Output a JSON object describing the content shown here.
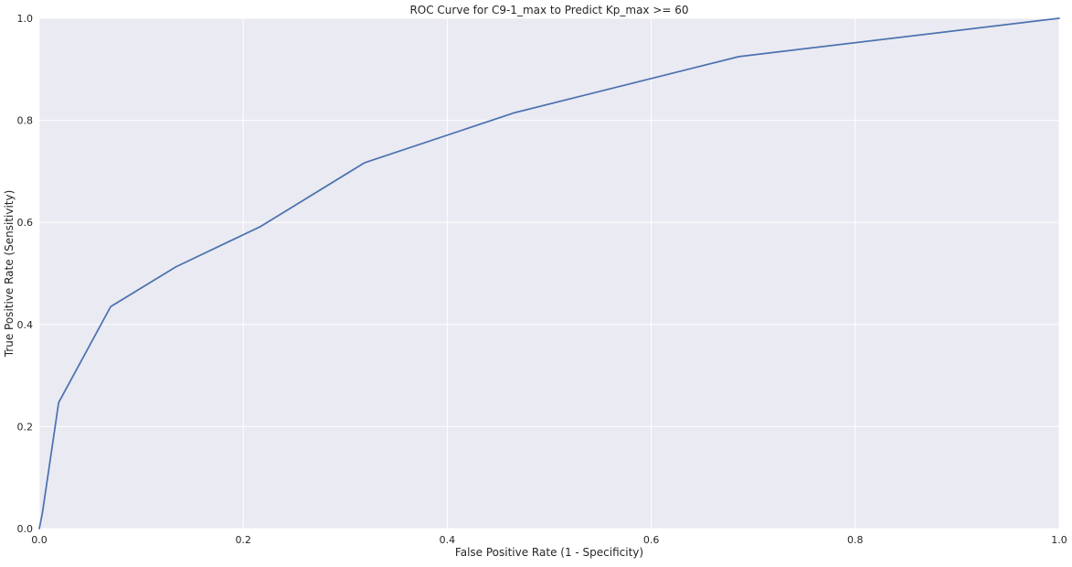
{
  "colors": {
    "plot_background": "#EAEAF2",
    "grid": "#FFFFFF",
    "line": "#4C72B0",
    "text": "#262626",
    "page_background": "#FFFFFF"
  },
  "chart_data": {
    "type": "line",
    "title": "ROC Curve for C9-1_max to Predict Kp_max >= 60",
    "xlabel": "False Positive Rate (1 - Specificity)",
    "ylabel": "True Positive Rate (Sensitivity)",
    "xlim": [
      0.0,
      1.0
    ],
    "ylim": [
      0.0,
      1.0
    ],
    "grid": true,
    "legend": "none",
    "x_ticks": [
      0.0,
      0.2,
      0.4,
      0.6,
      0.8,
      1.0
    ],
    "y_ticks": [
      0.0,
      0.2,
      0.4,
      0.6,
      0.8,
      1.0
    ],
    "x_tick_labels": [
      "0.0",
      "0.2",
      "0.4",
      "0.6",
      "0.8",
      "1.0"
    ],
    "y_tick_labels": [
      "0.0",
      "0.2",
      "0.4",
      "0.6",
      "0.8",
      "1.0"
    ],
    "series": [
      {
        "name": "ROC",
        "x": [
          0.0,
          0.003,
          0.019,
          0.07,
          0.134,
          0.217,
          0.319,
          0.466,
          0.686,
          1.0
        ],
        "y": [
          0.0,
          0.03,
          0.247,
          0.435,
          0.513,
          0.592,
          0.717,
          0.815,
          0.925,
          1.0
        ]
      }
    ]
  }
}
